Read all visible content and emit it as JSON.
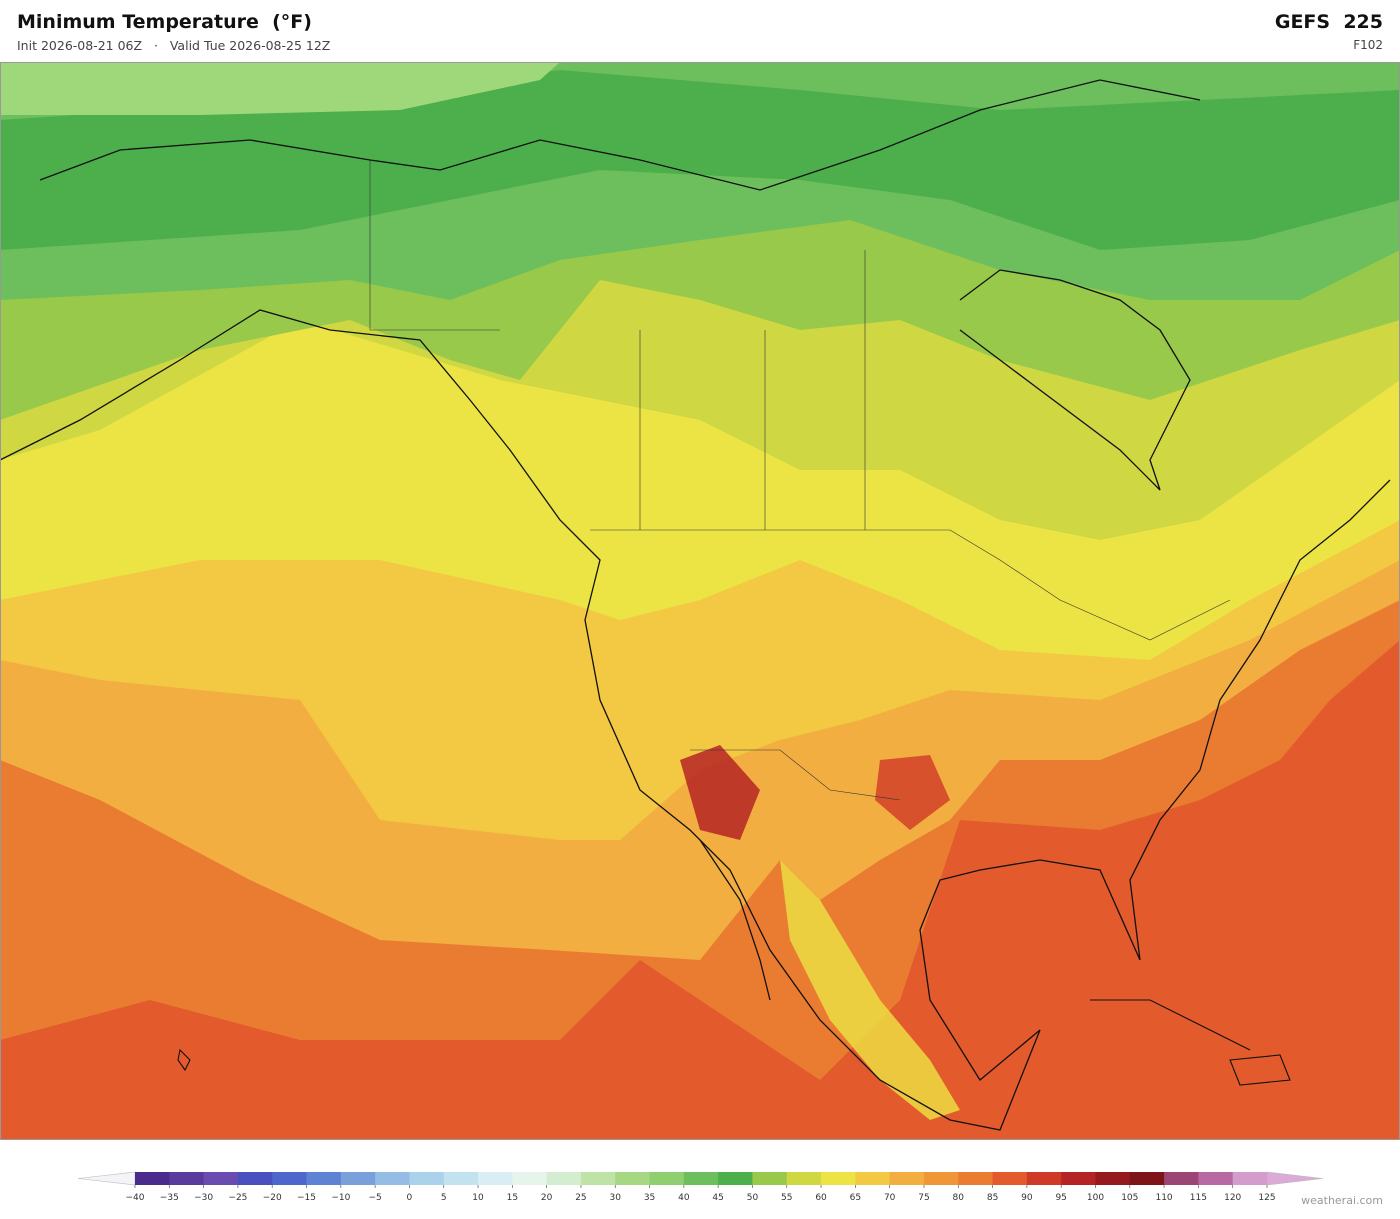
{
  "header": {
    "title": "Minimum Temperature  (°F)",
    "subtitle": "Init 2026-08-21 06Z   ·   Valid Tue 2026-08-25 12Z",
    "model": "GEFS  225",
    "forecast": "F102"
  },
  "colorbar": {
    "ticks": [
      {
        "value": -40,
        "label": "−40"
      },
      {
        "value": -35,
        "label": "−35"
      },
      {
        "value": -30,
        "label": "−30"
      },
      {
        "value": -25,
        "label": "−25"
      },
      {
        "value": -20,
        "label": "−20"
      },
      {
        "value": -15,
        "label": "−15"
      },
      {
        "value": -10,
        "label": "−10"
      },
      {
        "value": -5,
        "label": "−5"
      },
      0,
      5,
      10,
      15,
      20,
      25,
      30,
      35,
      40,
      45,
      50,
      55,
      60,
      65,
      70,
      75,
      80,
      85,
      90,
      95,
      100,
      105,
      110,
      115,
      120,
      125
    ],
    "colors": [
      "#4a2a8c",
      "#5b3a9e",
      "#6a4bb0",
      "#4a4fc0",
      "#4f66cc",
      "#5e82d4",
      "#7aa0dc",
      "#95bce4",
      "#aad2ea",
      "#c2e2ef",
      "#d8eef3",
      "#e6f4ec",
      "#d4edd0",
      "#bfe3a6",
      "#a6d884",
      "#8fcf70",
      "#6cbf5c",
      "#4caf4c",
      "#98c94a",
      "#cfd843",
      "#ece444",
      "#f3c842",
      "#f2ae40",
      "#ee9638",
      "#ea7c32",
      "#e35a2c",
      "#cf3a28",
      "#b52424",
      "#951a1e",
      "#7d1418",
      "#9c4575",
      "#b869a3",
      "#d49ccb"
    ],
    "extend_colors": [
      "#f4f4f8",
      "#dcaad6"
    ]
  },
  "footer": {
    "watermark": "weatherai.com"
  }
}
